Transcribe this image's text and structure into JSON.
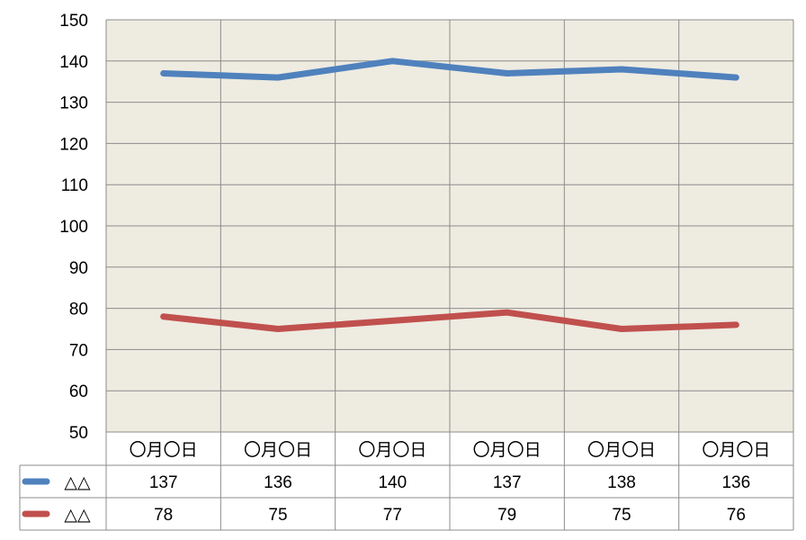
{
  "chart_data": {
    "type": "line",
    "categories": [
      "〇月〇日",
      "〇月〇日",
      "〇月〇日",
      "〇月〇日",
      "〇月〇日",
      "〇月〇日"
    ],
    "series": [
      {
        "name": "△△",
        "values": [
          137,
          136,
          140,
          137,
          138,
          136
        ],
        "color": "#4f81bd"
      },
      {
        "name": "△△",
        "values": [
          78,
          75,
          77,
          79,
          75,
          76
        ],
        "color": "#c0504d"
      }
    ],
    "ylim": [
      50,
      150
    ],
    "yticks": [
      50,
      60,
      70,
      80,
      90,
      100,
      110,
      120,
      130,
      140,
      150
    ],
    "grid": true,
    "legend": "data-table-below",
    "plot_background": "#eeebe1",
    "grid_color": "#8c8c8c"
  }
}
